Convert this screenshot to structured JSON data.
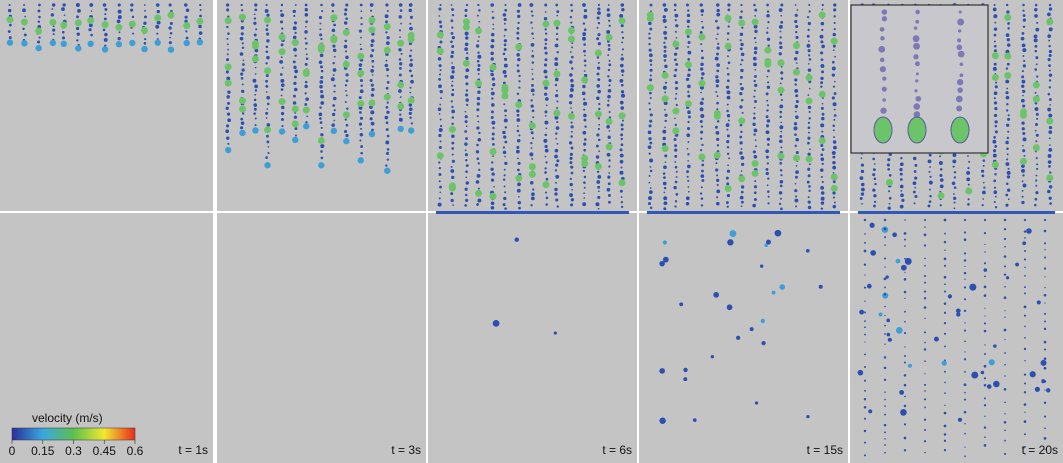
{
  "colorbar": {
    "title": "velocity (m/s)",
    "ticks": [
      0,
      0.15,
      0.3,
      0.45,
      0.6
    ]
  },
  "panels": [
    {
      "label": "t = 1s"
    },
    {
      "label": "t = 3s"
    },
    {
      "label": "t = 6s"
    },
    {
      "label": "t = 15s"
    },
    {
      "label": "t = 20s"
    }
  ]
}
